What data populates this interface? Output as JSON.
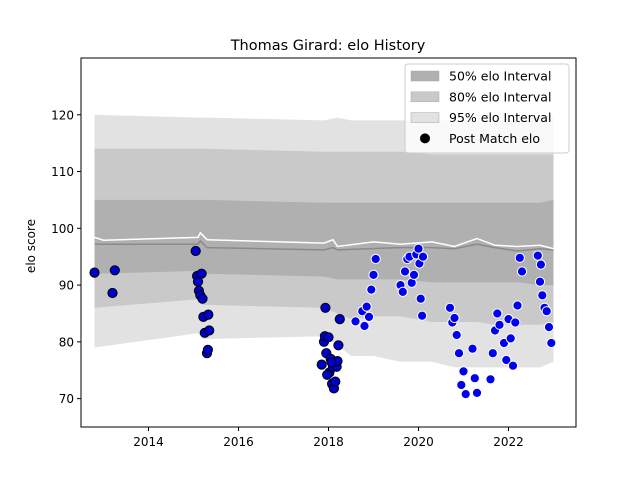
{
  "chart_data": {
    "type": "scatter",
    "title": "Thomas Girard: elo History",
    "xlabel": "",
    "ylabel": "elo score",
    "xlim": [
      2012.5,
      2023.5
    ],
    "ylim": [
      65,
      130
    ],
    "x_ticks": [
      2014,
      2016,
      2018,
      2020,
      2022
    ],
    "x_tick_labels": [
      "2014",
      "2016",
      "2018",
      "2020",
      "2022"
    ],
    "y_ticks": [
      70,
      80,
      90,
      100,
      110,
      120
    ],
    "y_tick_labels": [
      "70",
      "80",
      "90",
      "100",
      "110",
      "120"
    ],
    "grid": false,
    "legend_position": "top-right",
    "legend": [
      {
        "label": "50% elo Interval",
        "kind": "band",
        "color": "#b0b0b0"
      },
      {
        "label": "80% elo Interval",
        "kind": "band",
        "color": "#c9c9c9"
      },
      {
        "label": "95% elo Interval",
        "kind": "band",
        "color": "#e2e2e2"
      },
      {
        "label": "Post Match elo",
        "kind": "marker",
        "color": "#000000"
      }
    ],
    "colors": {
      "band50": "#b0b0b0",
      "band80": "#c9c9c9",
      "band95": "#e2e2e2",
      "median_line": "#8a8a8a",
      "mean_line": "#ffffff",
      "early_points_fill": "#0000cc",
      "early_points_edge": "#000000",
      "late_points_fill": "#0000ee",
      "late_points_edge": "#ffffff"
    },
    "bands": {
      "x": [
        2012.8,
        2015.1,
        2015.2,
        2015.3,
        2017.9,
        2018.2,
        2018.5,
        2019.0,
        2019.6,
        2020.3,
        2020.8,
        2021.3,
        2021.7,
        2022.2,
        2022.7,
        2023.0
      ],
      "p95_low": [
        79.0,
        81.5,
        80.5,
        80.5,
        81.0,
        79.5,
        77.5,
        77.5,
        76.5,
        76.5,
        75.5,
        75.5,
        75.5,
        75.5,
        75.5,
        76.5
      ],
      "p80_low": [
        86.0,
        87.5,
        86.5,
        86.5,
        86.0,
        85.0,
        84.0,
        84.5,
        84.5,
        83.5,
        83.5,
        83.5,
        83.0,
        83.0,
        83.0,
        83.5
      ],
      "p50_low": [
        92.0,
        92.5,
        92.0,
        92.0,
        91.5,
        91.0,
        91.0,
        91.0,
        91.0,
        90.5,
        90.5,
        90.5,
        90.5,
        90.5,
        90.0,
        90.0
      ],
      "p50_high": [
        105.0,
        105.0,
        105.0,
        105.0,
        104.5,
        104.5,
        104.5,
        104.5,
        104.5,
        104.5,
        104.5,
        104.5,
        104.5,
        104.5,
        104.5,
        105.0
      ],
      "p80_high": [
        114.0,
        114.0,
        114.0,
        114.0,
        113.5,
        113.5,
        113.5,
        113.5,
        113.5,
        113.0,
        113.0,
        113.0,
        113.0,
        113.0,
        113.0,
        113.0
      ],
      "p95_high": [
        120.0,
        119.5,
        119.5,
        119.5,
        119.0,
        119.5,
        119.0,
        119.0,
        119.0,
        119.0,
        119.0,
        119.0,
        119.0,
        119.0,
        119.5,
        120.0
      ]
    },
    "median_line": {
      "x": [
        2012.8,
        2015.1,
        2015.15,
        2015.3,
        2017.9,
        2018.1,
        2018.2,
        2019.6,
        2020.3,
        2020.8,
        2021.3,
        2021.7,
        2022.2,
        2022.7,
        2023.0
      ],
      "y": [
        97.2,
        97.2,
        97.8,
        96.6,
        96.2,
        96.6,
        96.2,
        96.6,
        96.6,
        96.4,
        97.2,
        96.6,
        96.0,
        96.4,
        96.2
      ]
    },
    "mean_line": {
      "x": [
        2012.8,
        2013.0,
        2015.1,
        2015.15,
        2015.3,
        2017.9,
        2018.1,
        2018.2,
        2019.0,
        2019.6,
        2020.3,
        2020.8,
        2021.3,
        2021.7,
        2022.2,
        2022.7,
        2023.0
      ],
      "y": [
        98.4,
        97.9,
        98.4,
        99.2,
        98.0,
        97.4,
        98.0,
        96.8,
        97.6,
        97.2,
        97.6,
        96.8,
        98.2,
        97.0,
        96.8,
        97.0,
        96.4
      ]
    },
    "series": [
      {
        "name": "Post Match elo",
        "x": [
          2012.8,
          2013.2,
          2013.25,
          2015.05,
          2015.08,
          2015.1,
          2015.12,
          2015.15,
          2015.18,
          2015.2,
          2015.22,
          2015.25,
          2015.3,
          2015.32,
          2015.33,
          2015.35,
          2017.85,
          2017.9,
          2017.92,
          2017.95,
          2018.0,
          2018.02,
          2018.05,
          2018.08,
          2018.1,
          2018.12,
          2018.15,
          2018.18,
          2018.2,
          2018.22,
          2018.25,
          2017.93,
          2017.97,
          2018.07
        ],
        "y": [
          92.2,
          88.6,
          92.6,
          96.0,
          91.6,
          90.6,
          89.0,
          88.2,
          92.0,
          87.6,
          84.4,
          81.6,
          78.0,
          78.6,
          84.8,
          82.0,
          76.0,
          80.0,
          81.0,
          78.0,
          80.8,
          74.6,
          77.0,
          72.6,
          75.6,
          71.8,
          73.0,
          75.6,
          76.6,
          79.4,
          84.0,
          86.0,
          74.2,
          76.4
        ]
      },
      {
        "name": "",
        "x": [
          2018.6,
          2018.75,
          2018.8,
          2018.85,
          2018.9,
          2018.95,
          2019.0,
          2019.05,
          2019.6,
          2019.65,
          2019.7,
          2019.75,
          2019.8,
          2019.85,
          2019.9,
          2019.95,
          2020.0,
          2020.02,
          2020.05,
          2020.08,
          2020.1,
          2020.7,
          2020.75,
          2020.8,
          2020.85,
          2020.9,
          2020.95,
          2021.0,
          2021.05,
          2021.2,
          2021.25,
          2021.3,
          2021.6,
          2021.65,
          2021.7,
          2021.75,
          2021.8,
          2021.9,
          2021.95,
          2022.0,
          2022.05,
          2022.1,
          2022.15,
          2022.2,
          2022.25,
          2022.3,
          2022.65,
          2022.7,
          2022.75,
          2022.8,
          2022.85,
          2022.9,
          2022.95,
          2022.72
        ],
        "y": [
          83.6,
          85.4,
          82.8,
          86.2,
          84.4,
          89.2,
          91.8,
          94.6,
          90.0,
          88.8,
          92.4,
          94.6,
          95.0,
          90.4,
          91.8,
          95.4,
          96.4,
          93.8,
          87.6,
          84.6,
          95.0,
          86.0,
          83.4,
          84.2,
          81.2,
          78.0,
          72.4,
          74.8,
          70.8,
          78.8,
          73.6,
          71.0,
          73.4,
          78.0,
          82.0,
          85.0,
          83.0,
          79.8,
          76.8,
          84.0,
          80.6,
          75.8,
          83.4,
          86.4,
          94.8,
          92.4,
          95.2,
          90.6,
          88.2,
          86.0,
          85.4,
          82.6,
          79.8,
          93.6
        ]
      }
    ]
  }
}
